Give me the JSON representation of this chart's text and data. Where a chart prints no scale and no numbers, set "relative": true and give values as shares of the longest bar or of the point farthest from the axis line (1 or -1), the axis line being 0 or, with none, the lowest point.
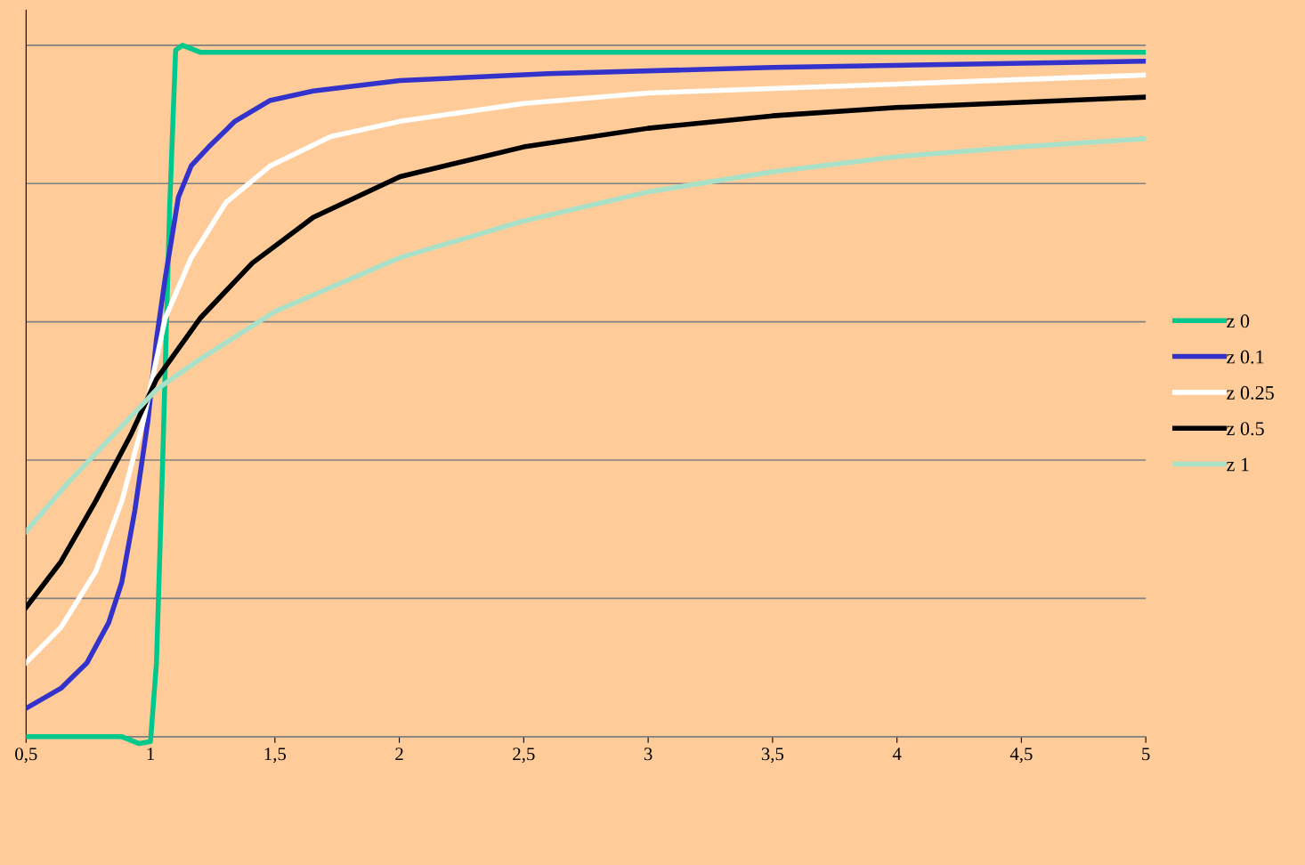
{
  "chart_data": {
    "type": "line",
    "relative": true,
    "grid": "y",
    "legend": "right",
    "marker": "none",
    "line_style": "solid",
    "xlim": [
      0.5,
      5
    ],
    "xticks": [
      {
        "value": 0.5,
        "label": "0,5"
      },
      1,
      {
        "value": 1.5,
        "label": "1,5"
      },
      2,
      {
        "value": 2.5,
        "label": "2,5"
      },
      3,
      {
        "value": 3.5,
        "label": "3,5"
      },
      4,
      {
        "value": 4.5,
        "label": "4,5"
      },
      5
    ],
    "series": [
      {
        "name": "z 0",
        "color": "#00c88c",
        "x": [
          0.5,
          0.885,
          0.955,
          1.0,
          1.024,
          1.049,
          1.077,
          1.101,
          1.129,
          1.199,
          5
        ],
        "values": [
          0,
          0,
          -0.01,
          -0.007,
          0.107,
          0.4,
          0.766,
          0.993,
          1.0,
          0.99,
          0.99
        ]
      },
      {
        "name": "z 0.1",
        "color": "#3333cc",
        "x": [
          0.5,
          0.64,
          0.745,
          0.832,
          0.885,
          0.937,
          0.99,
          1.024,
          1.059,
          1.112,
          1.164,
          1.234,
          1.339,
          1.479,
          1.654,
          2.003,
          2.598,
          3.5,
          5
        ],
        "values": [
          0.041,
          0.07,
          0.107,
          0.165,
          0.224,
          0.327,
          0.458,
          0.575,
          0.663,
          0.78,
          0.826,
          0.853,
          0.89,
          0.92,
          0.934,
          0.949,
          0.959,
          0.968,
          0.977
        ]
      },
      {
        "name": "z 0.25",
        "color": "#ffffff",
        "x": [
          0.5,
          0.64,
          0.78,
          0.885,
          0.972,
          1.059,
          1.164,
          1.304,
          1.479,
          1.724,
          2.003,
          2.5,
          3.0,
          4.0,
          5
        ],
        "values": [
          0.107,
          0.158,
          0.239,
          0.341,
          0.458,
          0.605,
          0.693,
          0.773,
          0.825,
          0.868,
          0.89,
          0.916,
          0.931,
          0.944,
          0.957
        ]
      },
      {
        "name": "z 0.5",
        "color": "#000000",
        "x": [
          0.5,
          0.64,
          0.78,
          0.92,
          1.024,
          1.199,
          1.409,
          1.654,
          2.003,
          2.5,
          3.0,
          3.5,
          4.0,
          5
        ],
        "values": [
          0.187,
          0.253,
          0.341,
          0.436,
          0.517,
          0.605,
          0.685,
          0.751,
          0.81,
          0.853,
          0.88,
          0.898,
          0.91,
          0.925
        ]
      },
      {
        "name": "z 1",
        "color": "#a8e0c8",
        "x": [
          0.5,
          0.675,
          0.85,
          1.024,
          1.199,
          1.5,
          2.003,
          2.5,
          3.0,
          3.5,
          4.0,
          4.5,
          5
        ],
        "values": [
          0.297,
          0.37,
          0.436,
          0.502,
          0.546,
          0.615,
          0.693,
          0.746,
          0.788,
          0.817,
          0.839,
          0.853,
          0.865
        ]
      }
    ]
  }
}
